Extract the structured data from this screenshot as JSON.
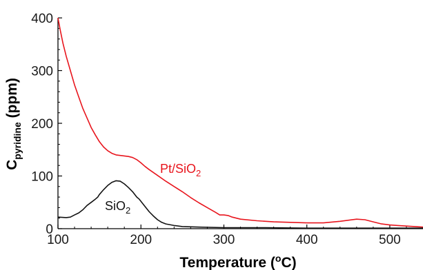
{
  "chart_data": {
    "type": "line",
    "xlabel": "Temperature (°C)",
    "xlabel_parts": {
      "main": "Temperature (",
      "sup": "o",
      "end": "C)"
    },
    "ylabel_parts": {
      "main": "C",
      "sub": "pyridine",
      "end": " (ppm)"
    },
    "xlim": [
      100,
      540
    ],
    "ylim": [
      0,
      400
    ],
    "x_ticks": [
      100,
      200,
      300,
      400,
      500
    ],
    "y_ticks": [
      0,
      100,
      200,
      300,
      400
    ],
    "grid": false,
    "series": [
      {
        "name": "Pt/SiO2",
        "label_main": "Pt/SiO",
        "label_sub": "2",
        "color": "#e8141c",
        "points": [
          [
            100,
            400
          ],
          [
            103,
            375
          ],
          [
            106,
            352
          ],
          [
            110,
            327
          ],
          [
            115,
            300
          ],
          [
            120,
            273
          ],
          [
            125,
            250
          ],
          [
            130,
            228
          ],
          [
            135,
            210
          ],
          [
            140,
            192
          ],
          [
            145,
            178
          ],
          [
            150,
            165
          ],
          [
            155,
            155
          ],
          [
            160,
            148
          ],
          [
            165,
            143
          ],
          [
            170,
            140
          ],
          [
            175,
            139
          ],
          [
            180,
            138
          ],
          [
            185,
            137
          ],
          [
            190,
            135
          ],
          [
            195,
            131
          ],
          [
            200,
            125
          ],
          [
            205,
            118
          ],
          [
            210,
            112
          ],
          [
            220,
            101
          ],
          [
            230,
            90
          ],
          [
            240,
            80
          ],
          [
            250,
            70
          ],
          [
            260,
            59
          ],
          [
            270,
            49
          ],
          [
            280,
            40
          ],
          [
            290,
            31
          ],
          [
            295,
            26
          ],
          [
            300,
            26
          ],
          [
            305,
            25
          ],
          [
            310,
            22
          ],
          [
            320,
            18
          ],
          [
            340,
            15
          ],
          [
            360,
            13
          ],
          [
            380,
            12
          ],
          [
            400,
            11
          ],
          [
            420,
            11
          ],
          [
            440,
            14
          ],
          [
            460,
            18
          ],
          [
            470,
            17
          ],
          [
            480,
            13
          ],
          [
            490,
            9
          ],
          [
            500,
            7
          ],
          [
            510,
            6
          ],
          [
            520,
            5
          ],
          [
            530,
            4
          ],
          [
            540,
            3
          ]
        ]
      },
      {
        "name": "SiO2",
        "label_main": "SiO",
        "label_sub": "2",
        "color": "#111111",
        "points": [
          [
            100,
            22
          ],
          [
            110,
            21
          ],
          [
            115,
            22
          ],
          [
            120,
            26
          ],
          [
            125,
            30
          ],
          [
            130,
            36
          ],
          [
            135,
            44
          ],
          [
            140,
            50
          ],
          [
            145,
            56
          ],
          [
            148,
            60
          ],
          [
            150,
            65
          ],
          [
            155,
            74
          ],
          [
            160,
            82
          ],
          [
            165,
            88
          ],
          [
            170,
            91
          ],
          [
            175,
            90
          ],
          [
            180,
            85
          ],
          [
            185,
            78
          ],
          [
            190,
            70
          ],
          [
            195,
            60
          ],
          [
            198,
            56
          ],
          [
            200,
            52
          ],
          [
            205,
            42
          ],
          [
            210,
            32
          ],
          [
            215,
            24
          ],
          [
            220,
            17
          ],
          [
            225,
            12
          ],
          [
            230,
            9
          ],
          [
            240,
            6
          ],
          [
            250,
            4
          ],
          [
            270,
            3
          ],
          [
            300,
            2
          ],
          [
            350,
            2
          ],
          [
            400,
            1
          ],
          [
            450,
            1
          ],
          [
            500,
            1
          ],
          [
            540,
            1
          ]
        ]
      }
    ]
  }
}
